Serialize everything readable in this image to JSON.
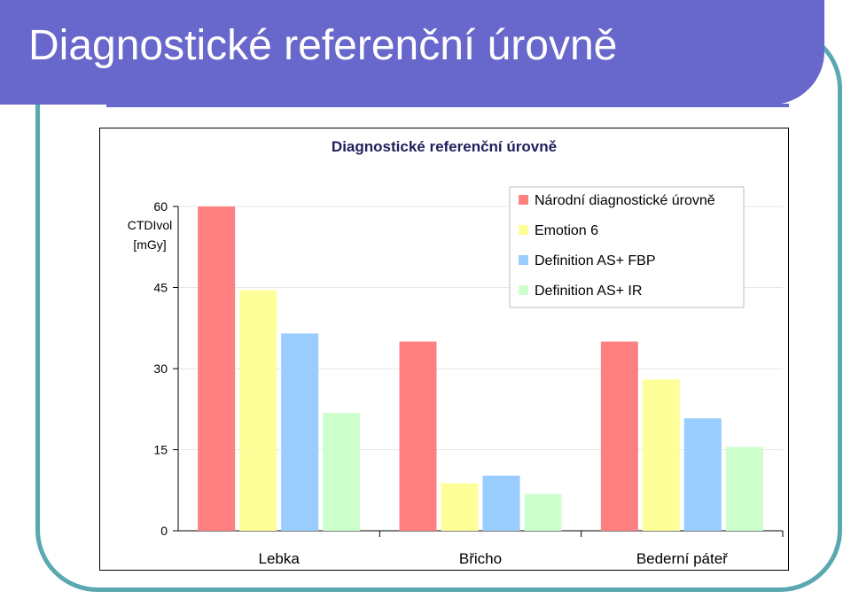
{
  "slide": {
    "title": "Diagnostické referenční úrovně"
  },
  "chart_data": {
    "type": "bar",
    "title": "Diagnostické referenční úrovně",
    "ylabel_lines": [
      "CTDIvol",
      "[mGy]"
    ],
    "xlabel": "",
    "ylim": [
      0,
      60
    ],
    "yticks": [
      0,
      15,
      30,
      45,
      60
    ],
    "grid": true,
    "legend_position": "top-right",
    "categories": [
      "Lebka",
      "Břicho",
      "Bederní páteř"
    ],
    "series": [
      {
        "name": "Národní diagnostické úrovně",
        "color": "#ff8080",
        "values": [
          60,
          35,
          35
        ]
      },
      {
        "name": "Emotion 6",
        "color": "#ffff99",
        "values": [
          44.5,
          8.8,
          28
        ]
      },
      {
        "name": "Definition AS+ FBP",
        "color": "#99ccff",
        "values": [
          36.5,
          10.2,
          20.8
        ]
      },
      {
        "name": "Definition AS+ IR",
        "color": "#ccffcc",
        "values": [
          21.8,
          6.8,
          15.5
        ]
      }
    ]
  }
}
